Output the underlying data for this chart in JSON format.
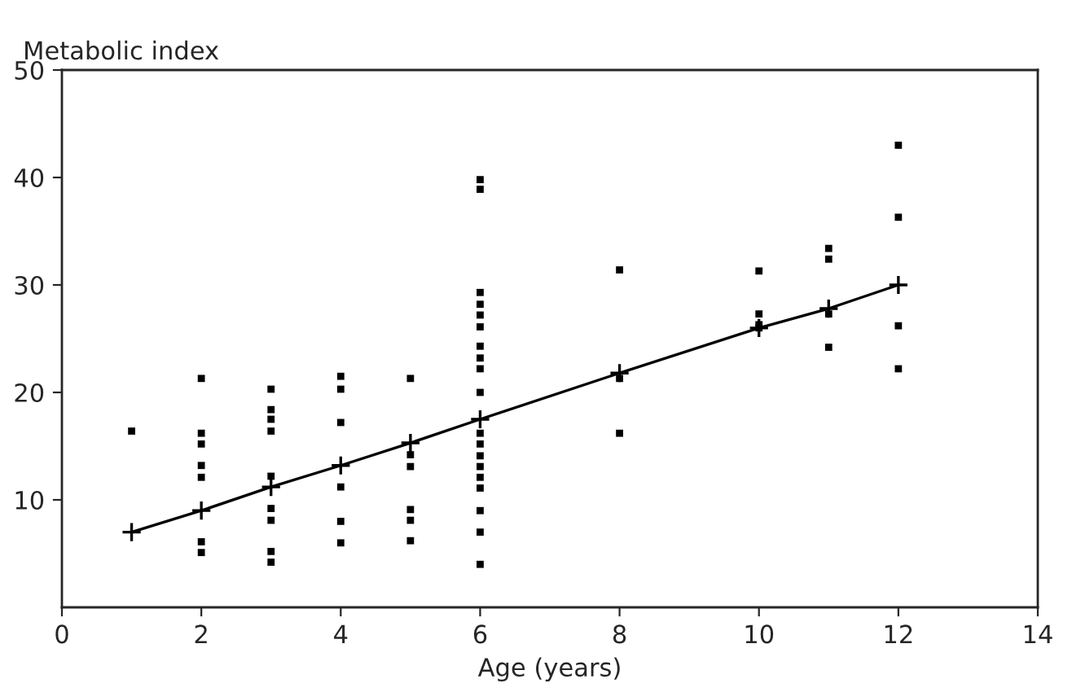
{
  "chart_data": {
    "type": "scatter",
    "xlabel": "Age (years)",
    "ylabel": "Metabolic index",
    "xlim": [
      0,
      14
    ],
    "xticks": [
      0,
      2,
      4,
      6,
      8,
      10,
      12,
      14
    ],
    "ylim": [
      0,
      50
    ],
    "yticks": [
      10,
      20,
      30,
      40,
      50
    ],
    "grid": false,
    "series": [
      {
        "marker": "square",
        "color": "#000000",
        "x": [
          1,
          2,
          2,
          2,
          2,
          2,
          2,
          2,
          3,
          3,
          3,
          3,
          3,
          3,
          3,
          3,
          3,
          4,
          4,
          4,
          4,
          4,
          4,
          5,
          5,
          5,
          5,
          5,
          5,
          6,
          6,
          6,
          6,
          6,
          6,
          6,
          6,
          6,
          6,
          6,
          6,
          6,
          6,
          6,
          6,
          6,
          6,
          6,
          8,
          8,
          8,
          10,
          10,
          10,
          10,
          11,
          11,
          11,
          11,
          12,
          12,
          12,
          12
        ],
        "values": [
          16.4,
          21.3,
          16.2,
          15.2,
          13.2,
          12.1,
          6.1,
          5.1,
          20.3,
          18.4,
          17.5,
          16.4,
          12.2,
          9.2,
          8.1,
          5.2,
          4.2,
          21.5,
          20.3,
          17.2,
          11.2,
          8.0,
          6.0,
          21.3,
          14.2,
          13.1,
          9.1,
          8.1,
          6.2,
          39.8,
          38.9,
          29.3,
          28.2,
          27.2,
          26.1,
          24.3,
          23.2,
          22.2,
          20.0,
          16.2,
          15.2,
          14.1,
          13.1,
          12.1,
          11.1,
          9.0,
          7.0,
          4.0,
          31.4,
          21.3,
          16.2,
          31.3,
          27.3,
          26.3,
          26.0,
          33.4,
          32.4,
          27.3,
          24.2,
          43.0,
          36.3,
          26.2,
          22.2
        ]
      },
      {
        "type": "line",
        "marker": "cross",
        "line_style": "solid",
        "color": "#000000",
        "x": [
          1,
          2,
          3,
          4,
          5,
          6,
          8,
          10,
          11,
          12
        ],
        "values": [
          7.0,
          9.0,
          11.2,
          13.2,
          15.3,
          17.5,
          21.8,
          26.0,
          27.8,
          30.0
        ]
      }
    ]
  }
}
